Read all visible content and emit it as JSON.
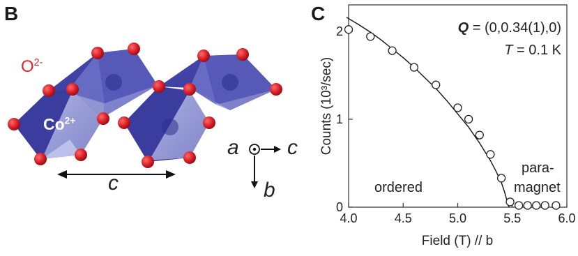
{
  "panel_b": {
    "letter": "B",
    "oxygen_label": "O",
    "oxygen_charge": "2-",
    "cobalt_label": "Co",
    "cobalt_charge": "2+",
    "length_label": "c",
    "axes": {
      "a": "a",
      "c": "c",
      "b": "b"
    },
    "colors": {
      "octahedron": "#3c3fa0",
      "oxygen": "#d81e27"
    }
  },
  "panel_c": {
    "letter": "C",
    "q_symbol": "Q",
    "q_value": " = (0,0.34(1),0)",
    "t_symbol": "T",
    "t_value": " = 0.1 K",
    "region_ordered": "ordered",
    "region_para_1": "para-",
    "region_para_2": "magnet"
  },
  "chart_data": {
    "type": "scatter",
    "title": "",
    "xlabel": "Field (T) // b",
    "ylabel": "Counts (10³/sec)",
    "xlim": [
      4.0,
      6.0
    ],
    "ylim": [
      0,
      2.3
    ],
    "x_ticks": [
      "4.0",
      "4.5",
      "5.0",
      "5.5",
      "6.0"
    ],
    "y_ticks": [
      "0",
      "1",
      "2"
    ],
    "series": [
      {
        "marker": "open-circle",
        "x": [
          4.0,
          4.2,
          4.4,
          4.6,
          4.8,
          5.0,
          5.1,
          5.2,
          5.3,
          5.4,
          5.48,
          5.56,
          5.64,
          5.72,
          5.8,
          5.9
        ],
        "y": [
          2.02,
          1.94,
          1.78,
          1.59,
          1.39,
          1.13,
          1.0,
          0.82,
          0.6,
          0.33,
          0.06,
          0.02,
          0.02,
          0.02,
          0.02,
          0.02
        ]
      }
    ],
    "fit_curve": {
      "style": "solid-line",
      "x": [
        3.98,
        4.1,
        4.2,
        4.3,
        4.4,
        4.5,
        4.6,
        4.7,
        4.8,
        4.9,
        5.0,
        5.1,
        5.2,
        5.3,
        5.35,
        5.4,
        5.43,
        5.45,
        5.46,
        5.47
      ],
      "y": [
        2.16,
        2.07,
        1.99,
        1.9,
        1.8,
        1.7,
        1.59,
        1.47,
        1.35,
        1.21,
        1.06,
        0.91,
        0.73,
        0.53,
        0.41,
        0.28,
        0.17,
        0.08,
        0.03,
        0.0
      ]
    }
  }
}
